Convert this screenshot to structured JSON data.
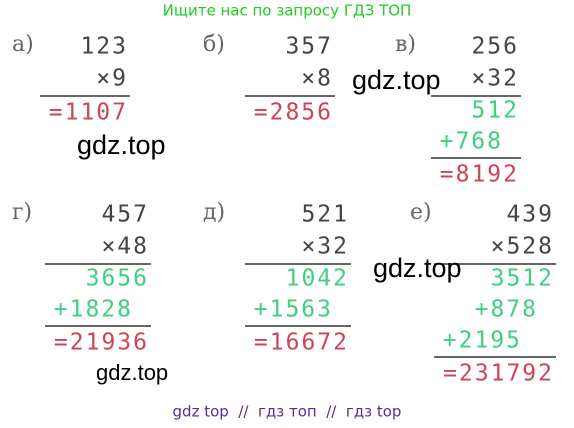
{
  "header": {
    "text": "Ищите нас по запросу ГДЗ ТОП"
  },
  "problems": [
    {
      "label": "а)",
      "multiplicand": "123",
      "multiplier": "×9",
      "partials": [],
      "result": "=1107"
    },
    {
      "label": "б)",
      "multiplicand": "357",
      "multiplier": "×8",
      "partials": [],
      "result": "=2856"
    },
    {
      "label": "в)",
      "multiplicand": "256",
      "multiplier": "×32",
      "partials": [
        "512",
        "+768"
      ],
      "result": "=8192"
    },
    {
      "label": "г)",
      "multiplicand": "457",
      "multiplier": "×48",
      "partials": [
        "3656",
        "+1828"
      ],
      "result": "=21936"
    },
    {
      "label": "д)",
      "multiplicand": "521",
      "multiplier": "×32",
      "partials": [
        "1042",
        "+1563"
      ],
      "result": "=16672"
    },
    {
      "label": "е)",
      "multiplicand": "439",
      "multiplier": "×528",
      "partials": [
        "3512",
        "+878",
        "+2195"
      ],
      "result": "=231792"
    }
  ],
  "watermarks": [
    "gdz.top",
    "gdz.top",
    "gdz.top",
    "gdz.top"
  ],
  "footer": {
    "text": "gdz top  //  гдз топ  //  гдз top"
  }
}
